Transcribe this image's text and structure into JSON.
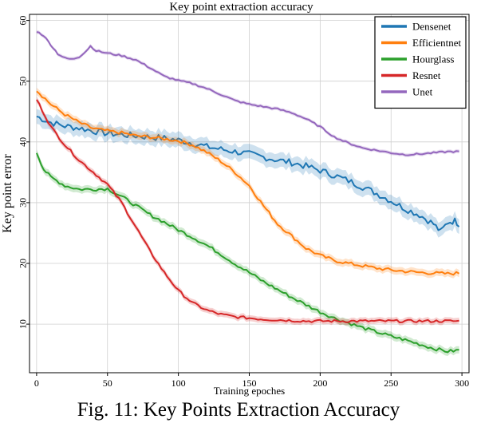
{
  "caption": "Fig. 11: Key Points Extraction Accuracy",
  "chart_data": {
    "type": "line",
    "title": "Key point extraction accuracy",
    "xlabel": "Training epoches",
    "ylabel": "Key point error",
    "xlim": [
      -5,
      305
    ],
    "ylim": [
      2,
      61
    ],
    "xticks": [
      0,
      50,
      100,
      150,
      200,
      250,
      300
    ],
    "yticks": [
      10,
      20,
      30,
      40,
      50,
      60
    ],
    "grid": true,
    "legend_position": "top-right",
    "series": [
      {
        "name": "Densenet",
        "color": "#1f77b4",
        "band": 1.2,
        "x": [
          0,
          10,
          20,
          30,
          40,
          50,
          60,
          70,
          80,
          90,
          100,
          110,
          120,
          130,
          140,
          150,
          160,
          170,
          180,
          190,
          200,
          210,
          220,
          230,
          240,
          250,
          260,
          270,
          280,
          285,
          290,
          295,
          298
        ],
        "y": [
          44.2,
          43.2,
          42.6,
          42.3,
          41.8,
          41.4,
          41.2,
          41.0,
          40.8,
          40.6,
          40.3,
          39.8,
          39.2,
          38.8,
          38.4,
          38.0,
          37.5,
          37.0,
          36.6,
          36.0,
          35.3,
          34.5,
          33.6,
          32.6,
          31.5,
          30.3,
          29.0,
          28.0,
          26.5,
          25.2,
          26.8,
          27.0,
          26.5
        ]
      },
      {
        "name": "Efficientnet",
        "color": "#ff7f0e",
        "band": 0.6,
        "x": [
          0,
          10,
          20,
          30,
          40,
          50,
          60,
          70,
          80,
          90,
          100,
          110,
          120,
          130,
          140,
          150,
          160,
          170,
          180,
          190,
          200,
          210,
          220,
          230,
          240,
          250,
          260,
          270,
          280,
          290,
          298
        ],
        "y": [
          48.5,
          46.2,
          44.5,
          43.2,
          42.2,
          41.8,
          41.5,
          41.0,
          40.8,
          40.5,
          40.2,
          39.5,
          38.3,
          36.8,
          35.0,
          32.8,
          29.5,
          26.5,
          24.5,
          22.5,
          21.3,
          20.5,
          20.0,
          19.6,
          19.2,
          18.9,
          18.7,
          18.5,
          18.4,
          18.3,
          18.4
        ]
      },
      {
        "name": "Hourglass",
        "color": "#2ca02c",
        "band": 0.6,
        "x": [
          0,
          5,
          10,
          20,
          30,
          40,
          50,
          60,
          70,
          80,
          90,
          100,
          110,
          120,
          130,
          140,
          150,
          160,
          170,
          180,
          190,
          200,
          210,
          220,
          230,
          240,
          250,
          260,
          270,
          280,
          290,
          298
        ],
        "y": [
          38.3,
          35.5,
          34.2,
          32.8,
          32.2,
          32.2,
          32.3,
          31.0,
          29.5,
          28.0,
          26.8,
          25.5,
          24.3,
          23.0,
          21.5,
          19.9,
          18.5,
          17.0,
          15.7,
          14.4,
          13.2,
          12.0,
          11.0,
          10.2,
          9.4,
          8.7,
          8.0,
          7.4,
          6.7,
          6.0,
          5.5,
          5.7
        ]
      },
      {
        "name": "Resnet",
        "color": "#d62728",
        "band": 0.5,
        "x": [
          0,
          10,
          20,
          30,
          40,
          50,
          60,
          70,
          80,
          90,
          100,
          110,
          120,
          130,
          140,
          150,
          160,
          170,
          180,
          190,
          200,
          220,
          240,
          260,
          280,
          298
        ],
        "y": [
          47.0,
          42.5,
          39.5,
          37.0,
          35.0,
          33.0,
          30.0,
          26.0,
          22.0,
          18.5,
          15.5,
          13.5,
          12.3,
          11.6,
          11.2,
          11.0,
          10.8,
          10.7,
          10.6,
          10.5,
          10.5,
          10.5,
          10.5,
          10.5,
          10.5,
          10.5
        ]
      },
      {
        "name": "Unet",
        "color": "#9467bd",
        "band": 0.3,
        "x": [
          0,
          5,
          10,
          15,
          20,
          25,
          30,
          35,
          38,
          42,
          50,
          60,
          70,
          80,
          90,
          100,
          110,
          120,
          130,
          140,
          150,
          160,
          170,
          180,
          190,
          200,
          210,
          220,
          230,
          240,
          250,
          260,
          270,
          280,
          290,
          298
        ],
        "y": [
          58.2,
          57.5,
          56.0,
          54.5,
          53.8,
          53.6,
          54.0,
          55.0,
          55.8,
          55.0,
          54.6,
          54.2,
          53.5,
          52.2,
          50.8,
          50.1,
          49.6,
          48.8,
          47.8,
          46.8,
          46.2,
          45.8,
          45.4,
          44.8,
          43.8,
          42.5,
          40.8,
          39.8,
          39.0,
          38.6,
          38.2,
          37.9,
          38.0,
          38.2,
          38.4,
          38.4
        ]
      }
    ]
  }
}
